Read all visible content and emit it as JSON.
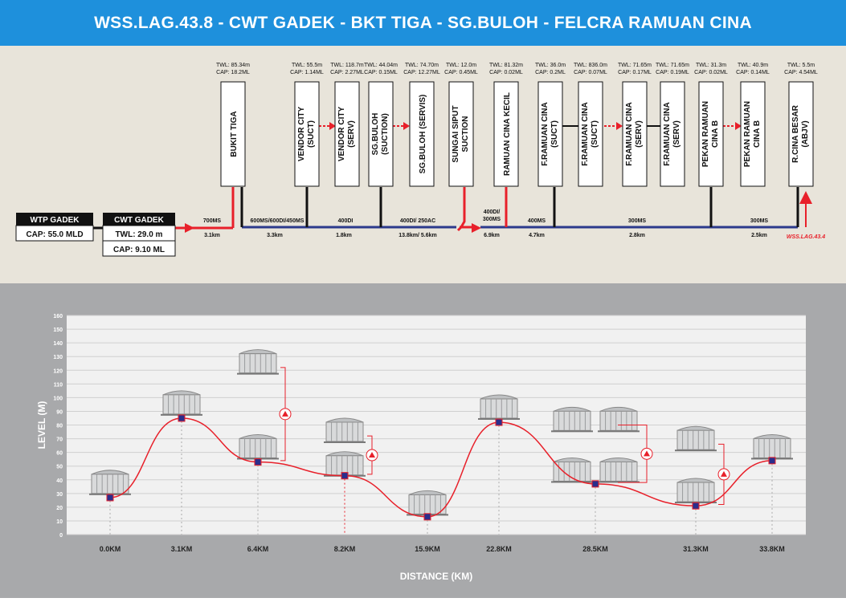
{
  "title": "WSS.LAG.43.8 - CWT GADEK - BKT TIGA - SG.BULOH - FELCRA RAMUAN CINA",
  "wtp": {
    "name": "WTP GADEK",
    "cap": "CAP: 55.0 MLD"
  },
  "cwt": {
    "name": "CWT GADEK",
    "twl": "TWL: 29.0 m",
    "cap": "CAP: 9.10 ML"
  },
  "reservoirs": [
    {
      "name": "BUKIT TIGA",
      "twl": "TWL: 85.34m",
      "cap": "CAP: 18.2ML"
    },
    {
      "name": "VENDOR CITY (SUCT)",
      "twl": "TWL: 55.5m",
      "cap": "CAP: 1.14ML"
    },
    {
      "name": "VENDOR CITY (SERV)",
      "twl": "TWL: 118.7m",
      "cap": "CAP: 2.27ML"
    },
    {
      "name": "SG.BULOH (SUCTION)",
      "twl": "TWL: 44.04m",
      "cap": "CAP: 0.15ML"
    },
    {
      "name": "SG.BULOH (SERVIS)",
      "twl": "TWL: 74.70m",
      "cap": "CAP: 12.27ML"
    },
    {
      "name": "SUNGAI SIPUT SUCTION",
      "twl": "TWL: 12.0m",
      "cap": "CAP: 0.45ML"
    },
    {
      "name": "RAMUAN CINA KECIL",
      "twl": "TWL: 81.32m",
      "cap": "CAP: 0.02ML"
    },
    {
      "name": "F.RAMUAN CINA (SUCT)",
      "twl": "TWL: 36.0m",
      "cap": "CAP: 0.2ML"
    },
    {
      "name": "F.RAMUAN CINA (SUCT)",
      "twl": "TWL: 836.0m",
      "cap": "CAP: 0.07ML"
    },
    {
      "name": "F.RAMUAN CINA (SERV)",
      "twl": "TWL: 71.65m",
      "cap": "CAP: 0.17ML"
    },
    {
      "name": "F.RAMUAN CINA (SERV)",
      "twl": "TWL: 71.65m",
      "cap": "CAP: 0.19ML"
    },
    {
      "name": "PEKAN RAMUAN CINA B",
      "twl": "TWL: 31.3m",
      "cap": "CAP: 0.02ML"
    },
    {
      "name": "PEKAN RAMUAN CINA B",
      "twl": "TWL: 40.9m",
      "cap": "CAP: 0.14ML"
    },
    {
      "name": "R.CINA BESAR (ABJV)",
      "twl": "TWL: 5.5m",
      "cap": "CAP: 4.54ML"
    }
  ],
  "pipe_sizes": [
    "700MS",
    "600MS/600DI/450MS",
    "400DI",
    "400DI/ 250AC",
    "400DI/ 300MS",
    "400MS",
    "300MS",
    "300MS"
  ],
  "pipe_lengths": [
    "3.1km",
    "3.3km",
    "1.8km",
    "13.8km/ 5.6km",
    "6.9km",
    "4.7km",
    "2.8km",
    "2.5km"
  ],
  "next_zone": "WSS.LAG.43.4",
  "chart_data": {
    "type": "line",
    "xlabel": "DISTANCE (KM)",
    "ylabel": "LEVEL (M)",
    "ylim": [
      0,
      160
    ],
    "yticks": [
      0,
      10,
      20,
      30,
      40,
      50,
      60,
      70,
      80,
      90,
      100,
      110,
      120,
      130,
      140,
      150,
      160
    ],
    "categories": [
      "0.0KM",
      "3.1KM",
      "6.4KM",
      "8.2KM",
      "15.9KM",
      "22.8KM",
      "28.5KM",
      "31.3KM",
      "33.8KM"
    ],
    "values": [
      27,
      85,
      53,
      43,
      13,
      82,
      37,
      21,
      54
    ],
    "grid": true
  },
  "colors": {
    "title_bg": "#1e90dc",
    "pipe_red": "#e8202a",
    "pipe_blue": "#2c3a8c",
    "schematic_bg": "#e8e4da",
    "profile_bg": "#a8a9ab"
  }
}
